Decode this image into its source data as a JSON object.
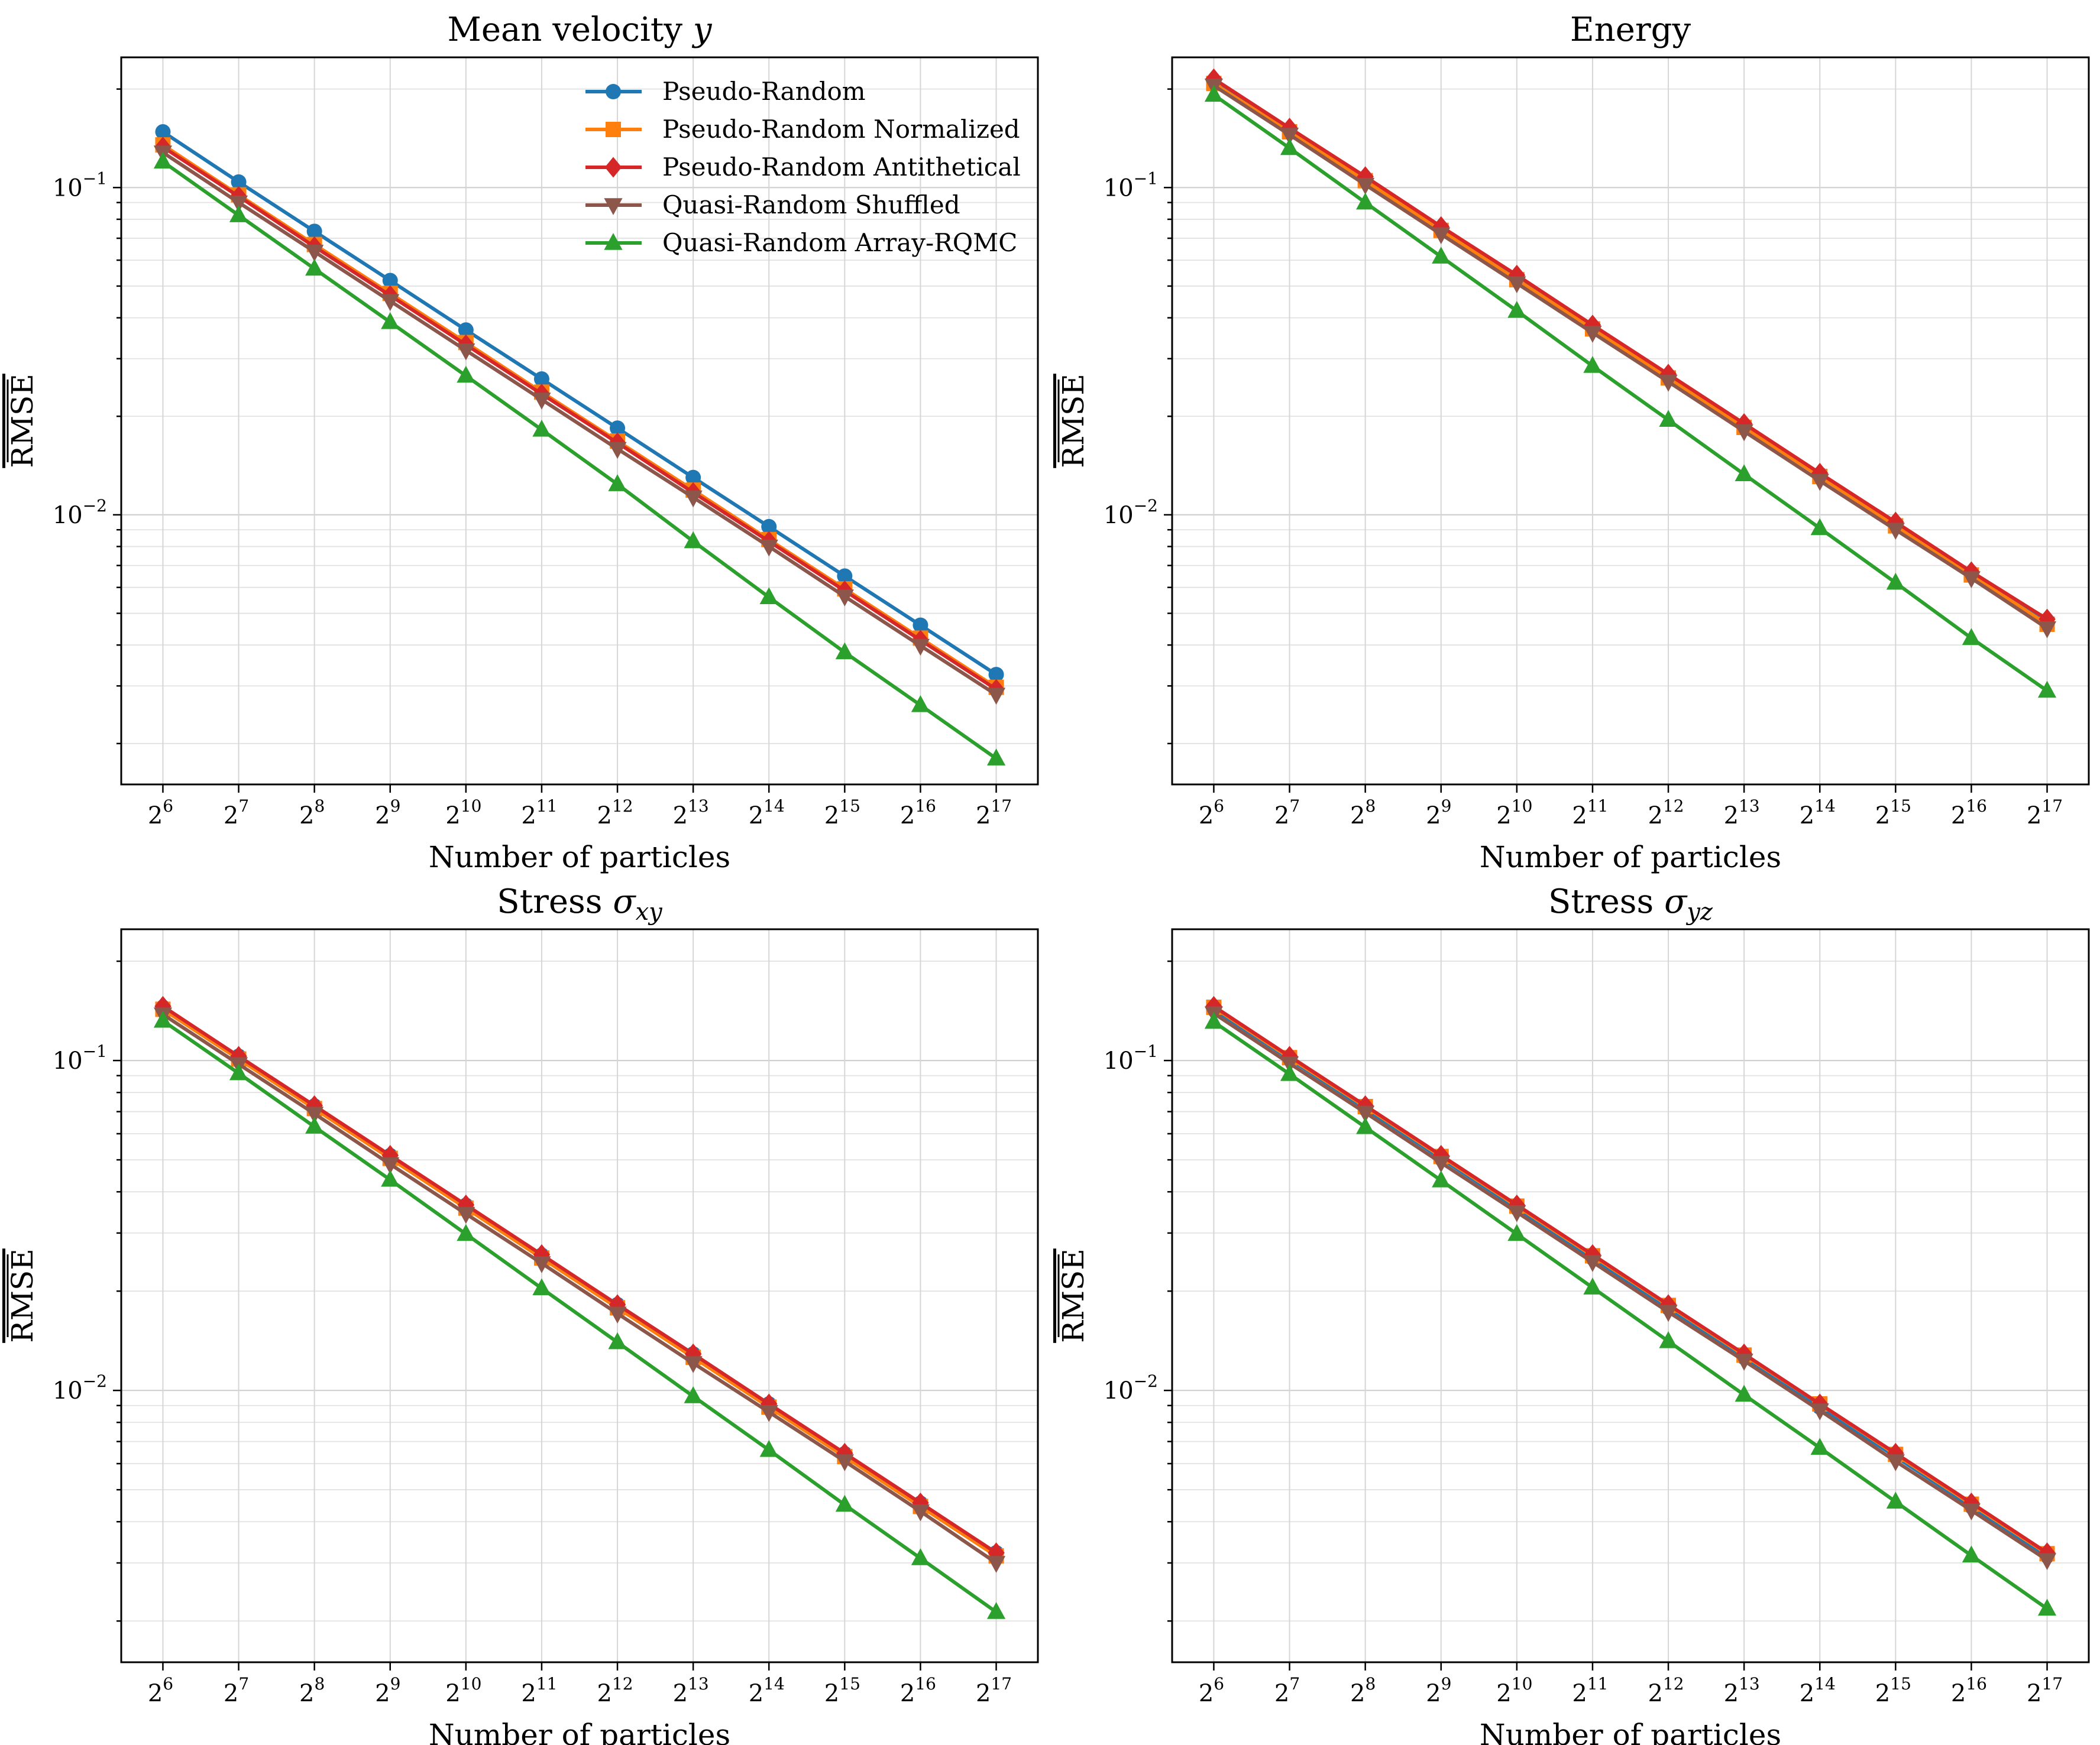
{
  "figure": {
    "type": "line",
    "layout": "2x2 grid of log-scale line charts"
  },
  "legend": {
    "placement": "top-right of first panel",
    "entries": [
      {
        "name": "Pseudo-Random",
        "color": "#1f77b4",
        "marker": "circle"
      },
      {
        "name": "Pseudo-Random Normalized",
        "color": "#ff7f0e",
        "marker": "square"
      },
      {
        "name": "Pseudo-Random Antithetical",
        "color": "#d62728",
        "marker": "diamond"
      },
      {
        "name": "Quasi-Random Shuffled",
        "color": "#8c564b",
        "marker": "triangle-down"
      },
      {
        "name": "Quasi-Random Array-RQMC",
        "color": "#2ca02c",
        "marker": "triangle-up"
      }
    ]
  },
  "chart_data": [
    {
      "type": "line",
      "title": "Mean velocity",
      "title_math": "y",
      "title_sub": "",
      "xlabel": "Number of particles",
      "ylabel": "RMSE",
      "xscale": "log2",
      "yscale": "log10",
      "x_exponents": [
        6,
        7,
        8,
        9,
        10,
        11,
        12,
        13,
        14,
        15,
        16,
        17
      ],
      "ylim": [
        0.0015,
        0.25
      ],
      "y_ticks": [
        {
          "base": "10",
          "exp": "−1",
          "value": 0.1
        },
        {
          "base": "10",
          "exp": "−2",
          "value": 0.01
        }
      ],
      "grid": true,
      "series": [
        {
          "name": "Pseudo-Random",
          "values": [
            0.148,
            0.104,
            0.0735,
            0.052,
            0.0367,
            0.026,
            0.0184,
            0.013,
            0.0092,
            0.0065,
            0.0046,
            0.00325
          ]
        },
        {
          "name": "Pseudo-Random Normalized",
          "values": [
            0.135,
            0.095,
            0.067,
            0.0475,
            0.0336,
            0.0237,
            0.0168,
            0.0119,
            0.0084,
            0.00594,
            0.0042,
            0.00297
          ]
        },
        {
          "name": "Pseudo-Random Antithetical",
          "values": [
            0.133,
            0.094,
            0.066,
            0.0468,
            0.0331,
            0.0234,
            0.0166,
            0.0117,
            0.0083,
            0.00586,
            0.00414,
            0.00293
          ]
        },
        {
          "name": "Quasi-Random Shuffled",
          "values": [
            0.128,
            0.09,
            0.0637,
            0.045,
            0.0318,
            0.0225,
            0.0159,
            0.0113,
            0.008,
            0.00563,
            0.00398,
            0.00282
          ]
        },
        {
          "name": "Quasi-Random Array-RQMC",
          "values": [
            0.12,
            0.0823,
            0.0565,
            0.0388,
            0.0266,
            0.0182,
            0.0124,
            0.0083,
            0.0056,
            0.0038,
            0.00262,
            0.0018
          ]
        }
      ]
    },
    {
      "type": "line",
      "title": "Energy",
      "title_math": "",
      "title_sub": "",
      "xlabel": "Number of particles",
      "ylabel": "RMSE",
      "xscale": "log2",
      "yscale": "log10",
      "x_exponents": [
        6,
        7,
        8,
        9,
        10,
        11,
        12,
        13,
        14,
        15,
        16,
        17
      ],
      "ylim": [
        0.0015,
        0.25
      ],
      "y_ticks": [
        {
          "base": "10",
          "exp": "−1",
          "value": 0.1
        },
        {
          "base": "10",
          "exp": "−2",
          "value": 0.01
        }
      ],
      "grid": true,
      "series": [
        {
          "name": "Pseudo-Random",
          "values": [
            0.211,
            0.15,
            0.106,
            0.075,
            0.053,
            0.0375,
            0.0265,
            0.0188,
            0.0133,
            0.0094,
            0.00665,
            0.0047
          ]
        },
        {
          "name": "Pseudo-Random Normalized",
          "values": [
            0.208,
            0.148,
            0.105,
            0.074,
            0.0523,
            0.037,
            0.0262,
            0.0185,
            0.0131,
            0.00925,
            0.00655,
            0.00463
          ]
        },
        {
          "name": "Pseudo-Random Antithetical",
          "values": [
            0.215,
            0.152,
            0.108,
            0.076,
            0.054,
            0.038,
            0.0269,
            0.019,
            0.0134,
            0.0095,
            0.0067,
            0.0048
          ]
        },
        {
          "name": "Quasi-Random Shuffled",
          "values": [
            0.205,
            0.145,
            0.102,
            0.072,
            0.051,
            0.036,
            0.0255,
            0.018,
            0.0127,
            0.009,
            0.0064,
            0.0045
          ]
        },
        {
          "name": "Quasi-Random Array-RQMC",
          "values": [
            0.192,
            0.132,
            0.09,
            0.0615,
            0.042,
            0.0285,
            0.0195,
            0.0133,
            0.0091,
            0.0062,
            0.0042,
            0.0029
          ]
        }
      ]
    },
    {
      "type": "line",
      "title": "Stress",
      "title_math": "σ",
      "title_sub": "xy",
      "xlabel": "Number of particles",
      "ylabel": "RMSE",
      "xscale": "log2",
      "yscale": "log10",
      "x_exponents": [
        6,
        7,
        8,
        9,
        10,
        11,
        12,
        13,
        14,
        15,
        16,
        17
      ],
      "ylim": [
        0.0015,
        0.25
      ],
      "y_ticks": [
        {
          "base": "10",
          "exp": "−1",
          "value": 0.1
        },
        {
          "base": "10",
          "exp": "−2",
          "value": 0.01
        }
      ],
      "grid": true,
      "series": [
        {
          "name": "Pseudo-Random",
          "values": [
            0.145,
            0.103,
            0.0728,
            0.0515,
            0.0364,
            0.0257,
            0.0182,
            0.0129,
            0.0091,
            0.00643,
            0.00455,
            0.00322
          ]
        },
        {
          "name": "Pseudo-Random Normalized",
          "values": [
            0.143,
            0.101,
            0.0715,
            0.0505,
            0.0357,
            0.0252,
            0.0178,
            0.0126,
            0.0089,
            0.0063,
            0.00445,
            0.00315
          ]
        },
        {
          "name": "Pseudo-Random Antithetical",
          "values": [
            0.146,
            0.103,
            0.073,
            0.0516,
            0.0365,
            0.0258,
            0.0182,
            0.0129,
            0.0091,
            0.00645,
            0.00456,
            0.00322
          ]
        },
        {
          "name": "Quasi-Random Shuffled",
          "values": [
            0.138,
            0.0975,
            0.069,
            0.0485,
            0.0343,
            0.0243,
            0.0171,
            0.0121,
            0.0086,
            0.0061,
            0.0043,
            0.003
          ]
        },
        {
          "name": "Quasi-Random Array-RQMC",
          "values": [
            0.132,
            0.0915,
            0.063,
            0.0435,
            0.0298,
            0.0204,
            0.014,
            0.0096,
            0.0066,
            0.0045,
            0.0031,
            0.00213
          ]
        }
      ]
    },
    {
      "type": "line",
      "title": "Stress",
      "title_math": "σ",
      "title_sub": "yz",
      "xlabel": "Number of particles",
      "ylabel": "RMSE",
      "xscale": "log2",
      "yscale": "log10",
      "x_exponents": [
        6,
        7,
        8,
        9,
        10,
        11,
        12,
        13,
        14,
        15,
        16,
        17
      ],
      "ylim": [
        0.0015,
        0.25
      ],
      "y_ticks": [
        {
          "base": "10",
          "exp": "−1",
          "value": 0.1
        },
        {
          "base": "10",
          "exp": "−2",
          "value": 0.01
        }
      ],
      "grid": true,
      "series": [
        {
          "name": "Pseudo-Random",
          "values": [
            0.143,
            0.101,
            0.0715,
            0.0505,
            0.0357,
            0.0252,
            0.0178,
            0.0126,
            0.0089,
            0.0063,
            0.00445,
            0.00315
          ]
        },
        {
          "name": "Pseudo-Random Normalized",
          "values": [
            0.145,
            0.102,
            0.0725,
            0.0512,
            0.0362,
            0.0256,
            0.0181,
            0.0128,
            0.0091,
            0.0064,
            0.00452,
            0.0032
          ]
        },
        {
          "name": "Pseudo-Random Antithetical",
          "values": [
            0.146,
            0.103,
            0.073,
            0.0516,
            0.0365,
            0.0258,
            0.0182,
            0.0129,
            0.0091,
            0.00645,
            0.00456,
            0.00322
          ]
        },
        {
          "name": "Quasi-Random Shuffled",
          "values": [
            0.139,
            0.098,
            0.0695,
            0.049,
            0.0347,
            0.0245,
            0.0173,
            0.0123,
            0.0087,
            0.0061,
            0.00433,
            0.00306
          ]
        },
        {
          "name": "Quasi-Random Array-RQMC",
          "values": [
            0.131,
            0.091,
            0.0628,
            0.0433,
            0.0298,
            0.0205,
            0.0141,
            0.0097,
            0.0067,
            0.0046,
            0.00316,
            0.00218
          ]
        }
      ]
    }
  ]
}
